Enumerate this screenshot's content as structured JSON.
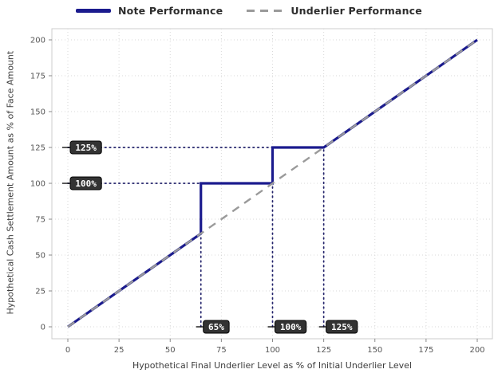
{
  "chart_data": {
    "type": "line",
    "title": "",
    "xlabel": "Hypothetical Final Underlier Level as % of Initial Underlier Level",
    "ylabel": "Hypothetical Cash Settlement Amount as % of Face Amount",
    "xlim": [
      0,
      200
    ],
    "ylim": [
      0,
      200
    ],
    "xticks": [
      0,
      25,
      50,
      75,
      100,
      125,
      150,
      175,
      200
    ],
    "yticks": [
      0,
      25,
      50,
      75,
      100,
      125,
      150,
      175,
      200
    ],
    "grid": true,
    "legend_position": "top-center",
    "legend": [
      {
        "label": "Note Performance",
        "color": "#1b1b8e",
        "style": "solid"
      },
      {
        "label": "Underlier Performance",
        "color": "#9a9a9a",
        "style": "dashed"
      }
    ],
    "series": [
      {
        "name": "Note Performance",
        "color": "#1b1b8e",
        "style": "solid",
        "width": 3.2,
        "points": [
          [
            0,
            0
          ],
          [
            65,
            65
          ],
          [
            65,
            100
          ],
          [
            100,
            100
          ],
          [
            100,
            125
          ],
          [
            125,
            125
          ],
          [
            200,
            200
          ]
        ]
      },
      {
        "name": "Underlier Performance",
        "color": "#9a9a9a",
        "style": "dashed",
        "width": 2.4,
        "points": [
          [
            0,
            0
          ],
          [
            200,
            200
          ]
        ]
      }
    ],
    "guide_lines": [
      {
        "orient": "h",
        "at": 125,
        "from": 0,
        "to": 100
      },
      {
        "orient": "h",
        "at": 100,
        "from": 0,
        "to": 65
      },
      {
        "orient": "v",
        "at": 65,
        "from": 0,
        "to": 65
      },
      {
        "orient": "v",
        "at": 100,
        "from": 0,
        "to": 100
      },
      {
        "orient": "v",
        "at": 125,
        "from": 0,
        "to": 125
      }
    ],
    "annotations": [
      {
        "axis": "y",
        "value": 125,
        "text": "125%"
      },
      {
        "axis": "y",
        "value": 100,
        "text": "100%"
      },
      {
        "axis": "x",
        "value": 65,
        "text": "65%"
      },
      {
        "axis": "x",
        "value": 100,
        "text": "100%"
      },
      {
        "axis": "x",
        "value": 125,
        "text": "125%"
      }
    ]
  },
  "colors": {
    "background": "#ffffff",
    "plot_border": "#cccccc",
    "gridline": "#d9d9d9",
    "tick_mark": "#8a8a8a",
    "tick_label": "#555555",
    "axis_label": "#3c3c3c",
    "legend_text": "#2d2d2d",
    "note_line": "#1b1b8e",
    "underlier_line": "#9a9a9a",
    "guide_dotted": "#23236b",
    "annotation_box_bg": "#333333",
    "annotation_box_border": "#000000",
    "annotation_text": "#ffffff"
  }
}
